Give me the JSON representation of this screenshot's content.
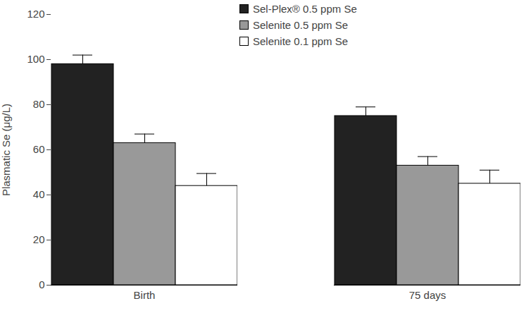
{
  "chart_data": {
    "type": "bar",
    "y_label": "Plasmatic Se (μg/L)",
    "categories": [
      "Birth",
      "75 days"
    ],
    "series": [
      {
        "name": "Sel-Plex® 0.5 ppm Se",
        "color": "#222222",
        "values": [
          98,
          75
        ],
        "errors": [
          4,
          4
        ]
      },
      {
        "name": "Selenite 0.5 ppm Se",
        "color": "#999999",
        "values": [
          63,
          53
        ],
        "errors": [
          4,
          4
        ]
      },
      {
        "name": "Selenite 0.1 ppm Se",
        "color": "#ffffff",
        "values": [
          44,
          45
        ],
        "errors": [
          5.5,
          6
        ]
      }
    ],
    "ylim": [
      0,
      120
    ],
    "yticks": [
      0,
      20,
      40,
      60,
      80,
      100,
      120
    ],
    "legend": "top-right",
    "grid": false
  }
}
